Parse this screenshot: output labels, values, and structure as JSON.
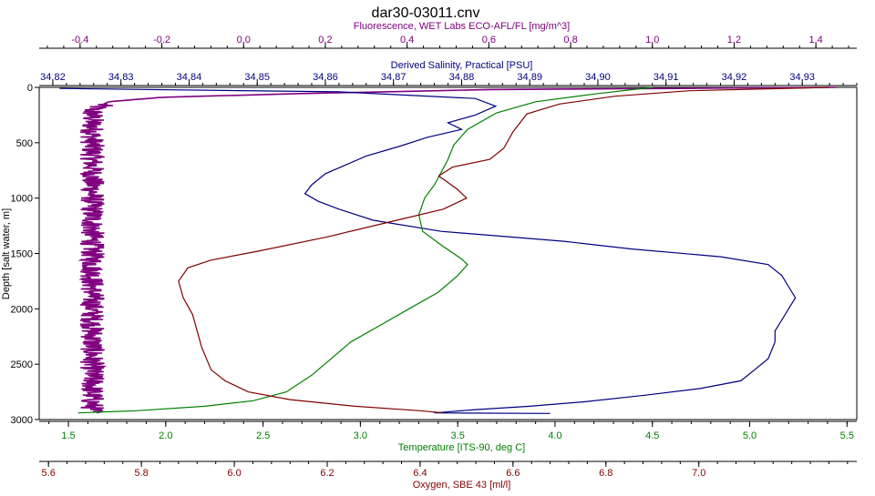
{
  "chart_data": {
    "type": "line",
    "title": "dar30-03011.cnv",
    "y_axis": {
      "label": "Depth [salt water, m]",
      "range": [
        0,
        3000
      ],
      "ticks": [
        0,
        500,
        1000,
        1500,
        2000,
        2500,
        3000
      ],
      "inverted": true
    },
    "x_axes": [
      {
        "id": "fluorescence",
        "label": "Fluorescence, WET Labs ECO-AFL/FL [mg/m^3]",
        "position": "top-outer",
        "color": "#800080",
        "range": [
          -0.5,
          1.5
        ],
        "ticks": [
          "-0.4",
          "-0.2",
          "0.0",
          "0.2",
          "0.4",
          "0.6",
          "0.8",
          "1.0",
          "1.2",
          "1.4"
        ]
      },
      {
        "id": "salinity",
        "label": "Derived Salinity, Practical [PSU]",
        "position": "top-inner",
        "color": "#000080",
        "range": [
          34.818,
          34.938
        ],
        "ticks": [
          "34.82",
          "34.83",
          "34.84",
          "34.85",
          "34.86",
          "34.87",
          "34.88",
          "34.89",
          "34.90",
          "34.91",
          "34.92",
          "34.93"
        ]
      },
      {
        "id": "temperature",
        "label": "Temperature [ITS-90, deg C]",
        "position": "bottom-inner",
        "color": "#008000",
        "range": [
          1.35,
          5.55
        ],
        "ticks": [
          "1.5",
          "2.0",
          "2.5",
          "3.0",
          "3.5",
          "4.0",
          "4.5",
          "5.0",
          "5.5"
        ]
      },
      {
        "id": "oxygen",
        "label": "Oxygen, SBE 43 [ml/l]",
        "position": "bottom-outer",
        "color": "#800000",
        "range": [
          5.58,
          7.34
        ],
        "ticks": [
          "5.6",
          "5.8",
          "6.0",
          "6.2",
          "6.4",
          "6.6",
          "6.8",
          "7.0"
        ]
      }
    ],
    "series": [
      {
        "name": "Fluorescence, WET Labs ECO-AFL/FL [mg/m^3]",
        "axis": "fluorescence",
        "color": "#800080",
        "noisy": true,
        "points": [
          [
            1.45,
            0
          ],
          [
            0.6,
            20
          ],
          [
            0.15,
            55
          ],
          [
            -0.2,
            90
          ],
          [
            -0.33,
            130
          ],
          [
            -0.37,
            200
          ],
          [
            -0.37,
            500
          ],
          [
            -0.37,
            1000
          ],
          [
            -0.37,
            1500
          ],
          [
            -0.37,
            2000
          ],
          [
            -0.37,
            2500
          ],
          [
            -0.37,
            2940
          ]
        ]
      },
      {
        "name": "Derived Salinity, Practical [PSU]",
        "axis": "salinity",
        "color": "#000080",
        "points": [
          [
            34.821,
            10
          ],
          [
            34.862,
            40
          ],
          [
            34.882,
            100
          ],
          [
            34.885,
            170
          ],
          [
            34.882,
            250
          ],
          [
            34.878,
            320
          ],
          [
            34.88,
            380
          ],
          [
            34.875,
            450
          ],
          [
            34.871,
            530
          ],
          [
            34.866,
            620
          ],
          [
            34.863,
            700
          ],
          [
            34.86,
            780
          ],
          [
            34.858,
            880
          ],
          [
            34.857,
            960
          ],
          [
            34.859,
            1030
          ],
          [
            34.862,
            1100
          ],
          [
            34.867,
            1200
          ],
          [
            34.877,
            1300
          ],
          [
            34.895,
            1390
          ],
          [
            34.905,
            1460
          ],
          [
            34.918,
            1530
          ],
          [
            34.925,
            1600
          ],
          [
            34.927,
            1700
          ],
          [
            34.928,
            1800
          ],
          [
            34.929,
            1900
          ],
          [
            34.928,
            2000
          ],
          [
            34.927,
            2100
          ],
          [
            34.926,
            2200
          ],
          [
            34.926,
            2300
          ],
          [
            34.925,
            2450
          ],
          [
            34.923,
            2550
          ],
          [
            34.921,
            2650
          ],
          [
            34.915,
            2720
          ],
          [
            34.907,
            2780
          ],
          [
            34.898,
            2840
          ],
          [
            34.89,
            2880
          ],
          [
            34.882,
            2910
          ],
          [
            34.876,
            2940
          ],
          [
            34.893,
            2945
          ]
        ]
      },
      {
        "name": "Temperature [ITS-90, deg C]",
        "axis": "temperature",
        "color": "#008000",
        "points": [
          [
            4.5,
            0
          ],
          [
            4.2,
            60
          ],
          [
            3.9,
            130
          ],
          [
            3.7,
            230
          ],
          [
            3.55,
            380
          ],
          [
            3.48,
            520
          ],
          [
            3.45,
            650
          ],
          [
            3.42,
            750
          ],
          [
            3.38,
            880
          ],
          [
            3.33,
            1000
          ],
          [
            3.3,
            1150
          ],
          [
            3.32,
            1300
          ],
          [
            3.42,
            1430
          ],
          [
            3.52,
            1550
          ],
          [
            3.55,
            1600
          ],
          [
            3.5,
            1700
          ],
          [
            3.4,
            1850
          ],
          [
            3.25,
            2000
          ],
          [
            3.1,
            2150
          ],
          [
            2.95,
            2300
          ],
          [
            2.85,
            2450
          ],
          [
            2.75,
            2600
          ],
          [
            2.62,
            2750
          ],
          [
            2.45,
            2830
          ],
          [
            2.2,
            2880
          ],
          [
            1.85,
            2920
          ],
          [
            1.55,
            2940
          ]
        ]
      },
      {
        "name": "Oxygen, SBE 43 [ml/l]",
        "axis": "oxygen",
        "color": "#800000",
        "points": [
          [
            7.28,
            0
          ],
          [
            6.98,
            30
          ],
          [
            6.82,
            80
          ],
          [
            6.7,
            150
          ],
          [
            6.63,
            240
          ],
          [
            6.6,
            400
          ],
          [
            6.58,
            550
          ],
          [
            6.55,
            650
          ],
          [
            6.47,
            720
          ],
          [
            6.44,
            800
          ],
          [
            6.48,
            920
          ],
          [
            6.5,
            1000
          ],
          [
            6.45,
            1100
          ],
          [
            6.35,
            1200
          ],
          [
            6.2,
            1350
          ],
          [
            6.05,
            1480
          ],
          [
            5.95,
            1560
          ],
          [
            5.9,
            1630
          ],
          [
            5.88,
            1750
          ],
          [
            5.89,
            1900
          ],
          [
            5.91,
            2050
          ],
          [
            5.92,
            2200
          ],
          [
            5.93,
            2350
          ],
          [
            5.95,
            2550
          ],
          [
            5.98,
            2650
          ],
          [
            6.03,
            2750
          ],
          [
            6.12,
            2820
          ],
          [
            6.26,
            2880
          ],
          [
            6.4,
            2920
          ],
          [
            6.45,
            2940
          ]
        ]
      }
    ],
    "grid": false,
    "legend": "none"
  }
}
